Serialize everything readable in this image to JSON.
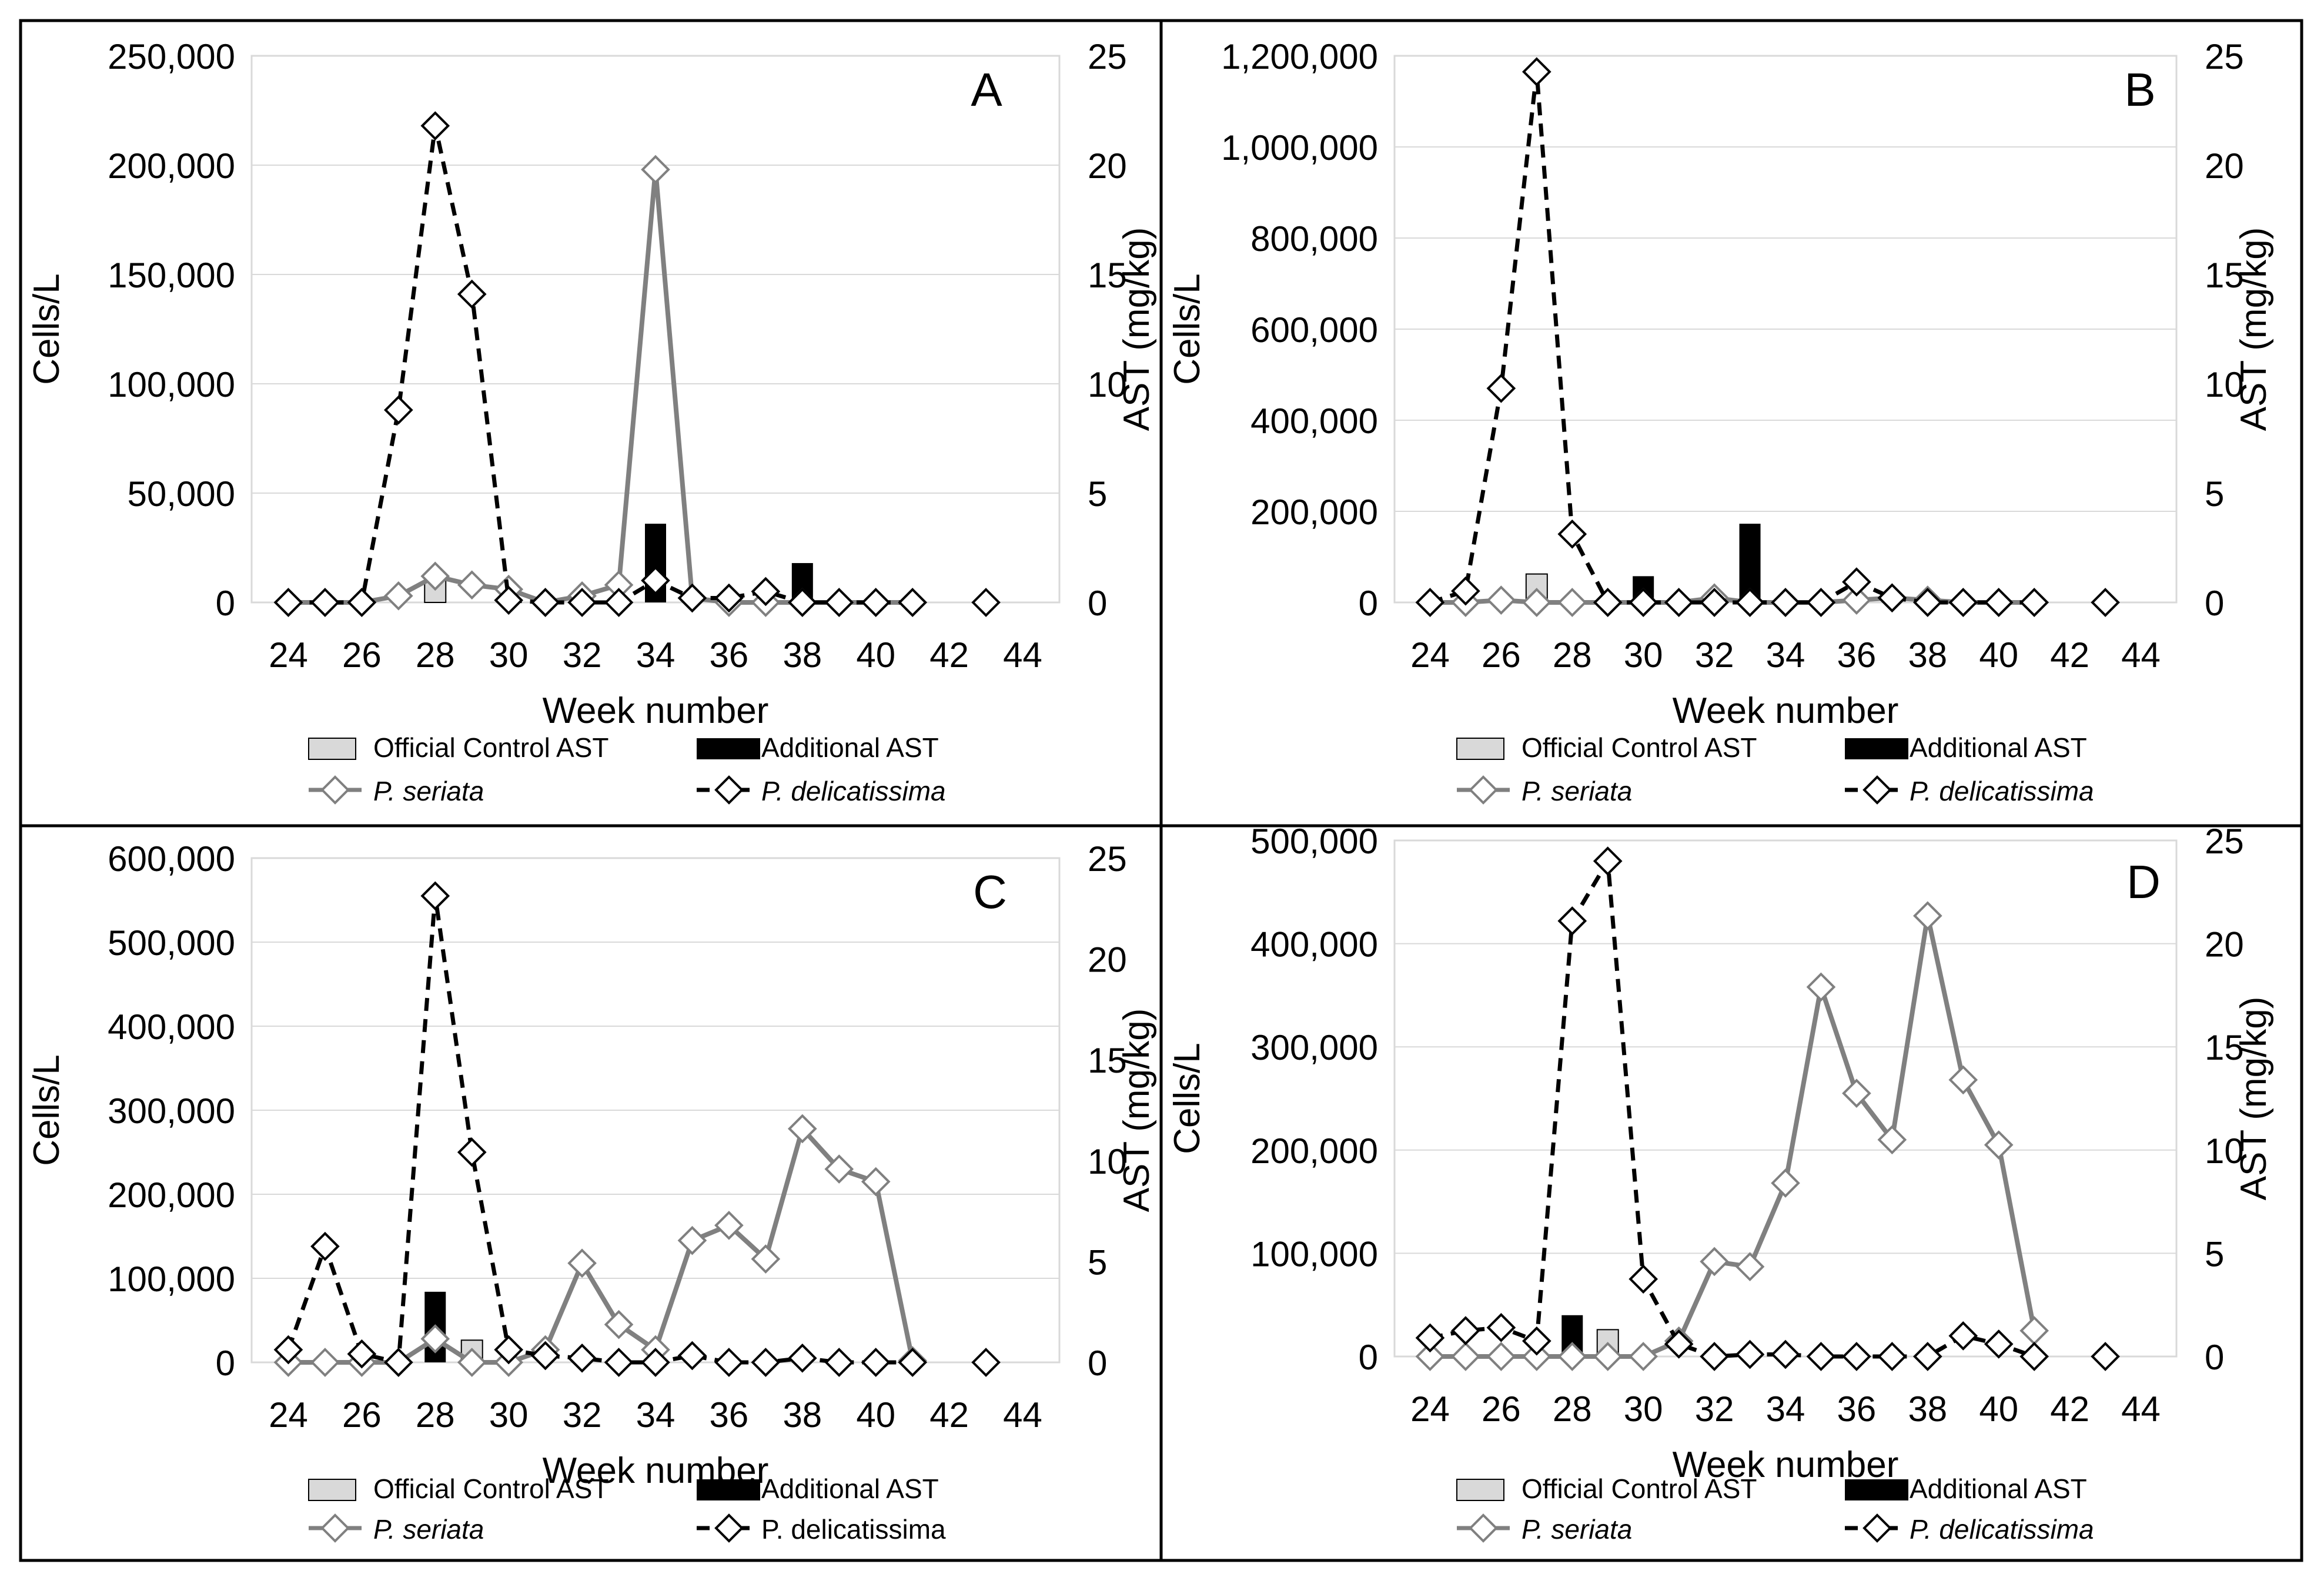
{
  "figure": {
    "colors": {
      "frame": "#000000",
      "grid": "#d9d9d9",
      "seriata": "#808080",
      "delicatissima": "#000000",
      "official_bar": "#d9d9d9",
      "additional_bar": "#000000"
    }
  },
  "chart_data": [
    {
      "panel": "A",
      "type": "combo",
      "xlabel": "Week number",
      "ylabel": "Cells/L",
      "y2label": "AST (mg/kg)",
      "xlim": [
        23,
        45
      ],
      "x_ticks": [
        24,
        26,
        28,
        30,
        32,
        34,
        36,
        38,
        40,
        42,
        44
      ],
      "ylim": [
        0,
        250000
      ],
      "y_ticks": [
        0,
        50000,
        100000,
        150000,
        200000,
        250000
      ],
      "y_tick_labels": [
        "0",
        "50,000",
        "100,000",
        "150,000",
        "200,000",
        "250,000"
      ],
      "y2lim": [
        0,
        25
      ],
      "y2_ticks": [
        0,
        5,
        10,
        15,
        20,
        25
      ],
      "legend": {
        "official": "Official Control AST",
        "additional": "Additional  AST",
        "seriata": "P. seriata",
        "delicatissima": "P. delicatissima",
        "delicatissima_italic": true
      },
      "series": [
        {
          "name": "P. seriata",
          "kind": "line",
          "axis": "left",
          "x": [
            24,
            25,
            26,
            27,
            28,
            29,
            30,
            31,
            32,
            33,
            34,
            35,
            36,
            37,
            38,
            39,
            40,
            41
          ],
          "values": [
            0,
            0,
            0,
            3000,
            12000,
            8000,
            6000,
            0,
            3000,
            8000,
            198000,
            2000,
            0,
            0,
            0,
            0,
            0,
            0
          ]
        },
        {
          "name": "P. delicatissima",
          "kind": "line",
          "axis": "left",
          "x": [
            24,
            25,
            26,
            27,
            28,
            29,
            30,
            31,
            32,
            33,
            34,
            35,
            36,
            37,
            38,
            39,
            40,
            41,
            43
          ],
          "values": [
            0,
            0,
            0,
            88000,
            218000,
            141000,
            1000,
            0,
            0,
            0,
            10000,
            2000,
            2000,
            5000,
            0,
            0,
            0,
            0,
            0
          ]
        },
        {
          "name": "Official Control AST",
          "kind": "bar",
          "axis": "right",
          "x": [
            28
          ],
          "values": [
            1.0
          ]
        },
        {
          "name": "Additional  AST",
          "kind": "bar",
          "axis": "right",
          "x": [
            34,
            38
          ],
          "values": [
            3.6,
            1.8
          ]
        }
      ]
    },
    {
      "panel": "B",
      "type": "combo",
      "xlabel": "Week number",
      "ylabel": "Cells/L",
      "y2label": "AST (mg/kg)",
      "xlim": [
        23,
        45
      ],
      "x_ticks": [
        24,
        26,
        28,
        30,
        32,
        34,
        36,
        38,
        40,
        42,
        44
      ],
      "ylim": [
        0,
        1200000
      ],
      "y_ticks": [
        0,
        200000,
        400000,
        600000,
        800000,
        1000000,
        1200000
      ],
      "y_tick_labels": [
        "0",
        "200,000",
        "400,000",
        "600,000",
        "800,000",
        "1,000,000",
        "1,200,000"
      ],
      "y2lim": [
        0,
        25
      ],
      "y2_ticks": [
        0,
        5,
        10,
        15,
        20,
        25
      ],
      "legend": {
        "official": "Official Control AST",
        "additional": "Additional  AST",
        "seriata": "P. seriata",
        "delicatissima": "P. delicatissima",
        "delicatissima_italic": true
      },
      "series": [
        {
          "name": "P. seriata",
          "kind": "line",
          "axis": "left",
          "x": [
            24,
            25,
            26,
            27,
            28,
            29,
            30,
            31,
            32,
            33,
            34,
            35,
            36,
            37,
            38,
            39,
            40,
            41
          ],
          "values": [
            0,
            0,
            5000,
            0,
            0,
            0,
            0,
            0,
            10000,
            0,
            0,
            0,
            5000,
            10000,
            5000,
            0,
            0,
            0
          ]
        },
        {
          "name": "P. delicatissima",
          "kind": "line",
          "axis": "left",
          "x": [
            24,
            25,
            26,
            27,
            28,
            29,
            30,
            31,
            32,
            33,
            34,
            35,
            36,
            37,
            38,
            39,
            40,
            41,
            43
          ],
          "values": [
            0,
            25000,
            470000,
            1165000,
            150000,
            0,
            0,
            0,
            0,
            0,
            0,
            0,
            45000,
            10000,
            0,
            0,
            0,
            0,
            0
          ]
        },
        {
          "name": "Official Control AST",
          "kind": "bar",
          "axis": "right",
          "x": [
            27
          ],
          "values": [
            1.3
          ]
        },
        {
          "name": "Additional  AST",
          "kind": "bar",
          "axis": "right",
          "x": [
            30,
            33
          ],
          "values": [
            1.2,
            3.6
          ]
        }
      ]
    },
    {
      "panel": "C",
      "type": "combo",
      "xlabel": "Week number",
      "ylabel": "Cells/L",
      "y2label": "AST (mg/kg)",
      "xlim": [
        23,
        45
      ],
      "x_ticks": [
        24,
        26,
        28,
        30,
        32,
        34,
        36,
        38,
        40,
        42,
        44
      ],
      "ylim": [
        0,
        600000
      ],
      "y_ticks": [
        0,
        100000,
        200000,
        300000,
        400000,
        500000,
        600000
      ],
      "y_tick_labels": [
        "0",
        "100,000",
        "200,000",
        "300,000",
        "400,000",
        "500,000",
        "600,000"
      ],
      "y2lim": [
        0,
        25
      ],
      "y2_ticks": [
        0,
        5,
        10,
        15,
        20,
        25
      ],
      "legend": {
        "official": "Official Control AST",
        "additional": "Additional  AST",
        "seriata": "P. seriata",
        "delicatissima": "P. delicatissima",
        "delicatissima_italic": false
      },
      "series": [
        {
          "name": "P. seriata",
          "kind": "line",
          "axis": "left",
          "x": [
            24,
            25,
            26,
            27,
            28,
            29,
            30,
            31,
            32,
            33,
            34,
            35,
            36,
            37,
            38,
            39,
            40,
            41
          ],
          "values": [
            0,
            0,
            0,
            0,
            28000,
            0,
            0,
            15000,
            118000,
            45000,
            15000,
            145000,
            163000,
            123000,
            278000,
            230000,
            215000,
            2000
          ]
        },
        {
          "name": "P. delicatissima",
          "kind": "line",
          "axis": "left",
          "x": [
            24,
            25,
            26,
            27,
            28,
            29,
            30,
            31,
            32,
            33,
            34,
            35,
            36,
            37,
            38,
            39,
            40,
            41,
            43
          ],
          "values": [
            15000,
            138000,
            10000,
            0,
            555000,
            250000,
            15000,
            8000,
            5000,
            0,
            0,
            8000,
            0,
            0,
            5000,
            0,
            0,
            0,
            0
          ]
        },
        {
          "name": "Official Control AST",
          "kind": "bar",
          "axis": "right",
          "x": [
            29
          ],
          "values": [
            1.1
          ]
        },
        {
          "name": "Additional  AST",
          "kind": "bar",
          "axis": "right",
          "x": [
            28
          ],
          "values": [
            3.5
          ]
        }
      ]
    },
    {
      "panel": "D",
      "type": "combo",
      "xlabel": "Week number",
      "ylabel": "Cells/L",
      "y2label": "AST (mg/kg)",
      "xlim": [
        23,
        45
      ],
      "x_ticks": [
        24,
        26,
        28,
        30,
        32,
        34,
        36,
        38,
        40,
        42,
        44
      ],
      "ylim": [
        0,
        500000
      ],
      "y_ticks": [
        0,
        100000,
        200000,
        300000,
        400000,
        500000
      ],
      "y_tick_labels": [
        "0",
        "100,000",
        "200,000",
        "300,000",
        "400,000",
        "500,000"
      ],
      "y2lim": [
        0,
        25
      ],
      "y2_ticks": [
        0,
        5,
        10,
        15,
        20,
        25
      ],
      "legend": {
        "official": "Official Control AST",
        "additional": "Additional  AST",
        "seriata": "P. seriata",
        "delicatissima": "P. delicatissima",
        "delicatissima_italic": true
      },
      "series": [
        {
          "name": "P. seriata",
          "kind": "line",
          "axis": "left",
          "x": [
            24,
            25,
            26,
            27,
            28,
            29,
            30,
            31,
            32,
            33,
            34,
            35,
            36,
            37,
            38,
            39,
            40,
            41
          ],
          "values": [
            0,
            0,
            0,
            0,
            0,
            0,
            0,
            15000,
            92000,
            87000,
            168000,
            358000,
            255000,
            210000,
            427000,
            268000,
            205000,
            25000
          ]
        },
        {
          "name": "P. delicatissima",
          "kind": "line",
          "axis": "left",
          "x": [
            24,
            25,
            26,
            27,
            28,
            29,
            30,
            31,
            32,
            33,
            34,
            35,
            36,
            37,
            38,
            39,
            40,
            41,
            43
          ],
          "values": [
            18000,
            25000,
            28000,
            15000,
            422000,
            480000,
            75000,
            12000,
            0,
            2000,
            2000,
            0,
            0,
            0,
            0,
            20000,
            12000,
            0,
            0
          ]
        },
        {
          "name": "Official Control AST",
          "kind": "bar",
          "axis": "right",
          "x": [
            29
          ],
          "values": [
            1.3
          ]
        },
        {
          "name": "Additional  AST",
          "kind": "bar",
          "axis": "right",
          "x": [
            28
          ],
          "values": [
            2.0
          ]
        }
      ]
    }
  ]
}
